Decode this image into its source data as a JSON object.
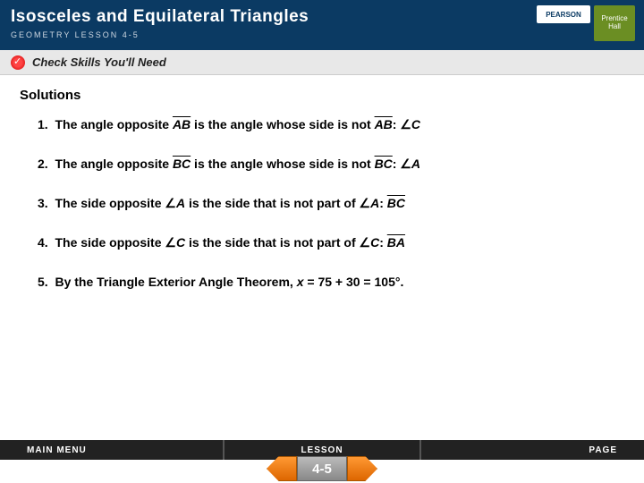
{
  "header": {
    "title": "Isosceles and Equilateral Triangles",
    "lesson_label": "GEOMETRY  LESSON 4-5",
    "logo_publisher": "PEARSON",
    "logo_brand_line1": "Prentice",
    "logo_brand_line2": "Hall"
  },
  "checkbar": {
    "text": "Check Skills You'll Need"
  },
  "content": {
    "heading": "Solutions",
    "items": [
      {
        "num": "1.",
        "pre": "The angle opposite ",
        "seg1": "AB",
        "mid": " is the angle whose side is not ",
        "seg2": "AB",
        "post": ": ",
        "ang": "∠",
        "ans": "C"
      },
      {
        "num": "2.",
        "pre": "The angle opposite ",
        "seg1": "BC",
        "mid": " is the angle whose side is not ",
        "seg2": "BC",
        "post": ": ",
        "ang": "∠",
        "ans": "A"
      },
      {
        "num": "3.",
        "pre": "The side opposite ",
        "ang1": "∠",
        "a1": "A",
        "mid": " is the side that is not part of ",
        "ang2": "∠",
        "a2": "A",
        "post": ": ",
        "segans": "BC"
      },
      {
        "num": "4.",
        "pre": "The side opposite ",
        "ang1": "∠",
        "a1": "C",
        "mid": " is the side that is not part of ",
        "ang2": "∠",
        "a2": "C",
        "post": ": ",
        "segans": "BA"
      },
      {
        "num": "5.",
        "text": "By the Triangle Exterior Angle Theorem, ",
        "var": "x",
        "rest": " = 75 + 30 = 105°."
      }
    ]
  },
  "footer": {
    "main_menu": "MAIN MENU",
    "lesson": "LESSON",
    "page": "PAGE",
    "pagenum": "4-5"
  }
}
